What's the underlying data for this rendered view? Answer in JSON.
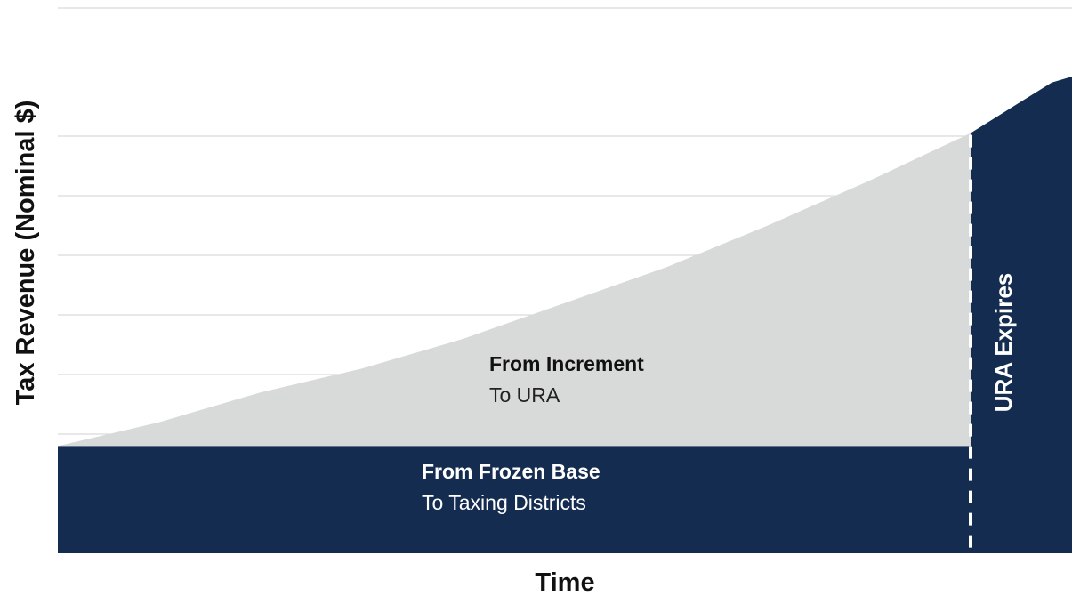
{
  "chart_data": {
    "type": "area",
    "title": "",
    "xlabel": "Time",
    "ylabel": "Tax Revenue (Nominal $)",
    "grid": true,
    "gridlines": [
      1,
      2,
      3,
      4,
      5,
      6,
      7
    ],
    "ylim": [
      0,
      8
    ],
    "xlim": [
      0,
      1
    ],
    "colors": {
      "frozen_base": "#132c50",
      "increment": "#d8d9d9",
      "after_expiry": "#132c50",
      "grid": "#d0d0d0",
      "divider": "#ffffff"
    },
    "frozen_base": {
      "value": 1.8,
      "label_title": "From Frozen Base",
      "label_sub": "To Taxing Districts"
    },
    "increment": {
      "label_title": "From Increment",
      "label_sub": "To URA"
    },
    "revenue_curve": {
      "x": [
        0.0,
        0.1,
        0.2,
        0.3,
        0.4,
        0.5,
        0.6,
        0.7,
        0.8,
        0.9,
        0.98,
        1.0
      ],
      "y": [
        1.8,
        2.2,
        2.7,
        3.1,
        3.6,
        4.2,
        4.8,
        5.5,
        6.25,
        7.05,
        7.9,
        8.0
      ]
    },
    "expiry": {
      "x": 0.9,
      "label": "URA Expires"
    }
  }
}
